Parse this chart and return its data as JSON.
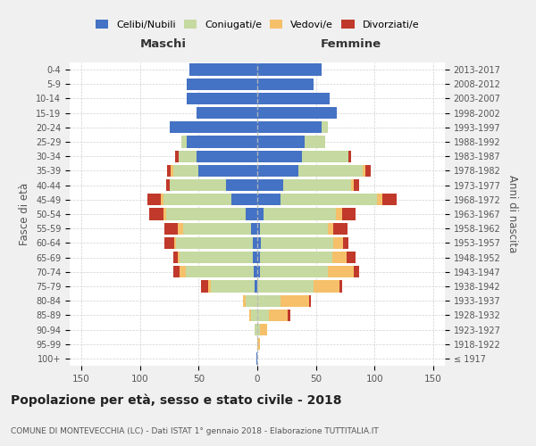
{
  "age_groups": [
    "100+",
    "95-99",
    "90-94",
    "85-89",
    "80-84",
    "75-79",
    "70-74",
    "65-69",
    "60-64",
    "55-59",
    "50-54",
    "45-49",
    "40-44",
    "35-39",
    "30-34",
    "25-29",
    "20-24",
    "15-19",
    "10-14",
    "5-9",
    "0-4"
  ],
  "birth_years": [
    "≤ 1917",
    "1918-1922",
    "1923-1927",
    "1928-1932",
    "1933-1937",
    "1938-1942",
    "1943-1947",
    "1948-1952",
    "1953-1957",
    "1958-1962",
    "1963-1967",
    "1968-1972",
    "1973-1977",
    "1978-1982",
    "1983-1987",
    "1988-1992",
    "1993-1997",
    "1998-2002",
    "2003-2007",
    "2008-2012",
    "2013-2017"
  ],
  "maschi_celibi": [
    1,
    0,
    0,
    0,
    0,
    2,
    3,
    4,
    4,
    5,
    10,
    22,
    27,
    50,
    52,
    60,
    75,
    52,
    60,
    60,
    58
  ],
  "maschi_coniugati": [
    0,
    0,
    2,
    5,
    10,
    38,
    58,
    62,
    65,
    58,
    68,
    58,
    48,
    22,
    15,
    5,
    0,
    0,
    0,
    0,
    0
  ],
  "maschi_vedovi": [
    0,
    0,
    0,
    2,
    2,
    2,
    5,
    2,
    2,
    5,
    2,
    2,
    0,
    2,
    0,
    0,
    0,
    0,
    0,
    0,
    0
  ],
  "maschi_divorziati": [
    0,
    0,
    0,
    0,
    0,
    6,
    6,
    4,
    8,
    11,
    12,
    12,
    3,
    3,
    3,
    0,
    0,
    0,
    0,
    0,
    0
  ],
  "femmine_nubili": [
    0,
    0,
    0,
    0,
    0,
    0,
    2,
    2,
    3,
    2,
    5,
    20,
    22,
    35,
    38,
    40,
    55,
    68,
    62,
    48,
    55
  ],
  "femmine_coniugate": [
    0,
    0,
    2,
    10,
    20,
    48,
    58,
    62,
    62,
    58,
    62,
    82,
    58,
    55,
    40,
    18,
    5,
    0,
    0,
    0,
    0
  ],
  "femmine_vedove": [
    0,
    2,
    6,
    16,
    24,
    22,
    22,
    12,
    8,
    5,
    5,
    5,
    2,
    2,
    0,
    0,
    0,
    0,
    0,
    0,
    0
  ],
  "femmine_divorziate": [
    0,
    0,
    0,
    2,
    2,
    2,
    5,
    8,
    5,
    12,
    12,
    12,
    5,
    5,
    2,
    0,
    0,
    0,
    0,
    0,
    0
  ],
  "color_celibi": "#4472c4",
  "color_coniugati": "#c5d9a0",
  "color_vedovi": "#f5c069",
  "color_divorziati": "#c0392b",
  "xlim": 160,
  "title": "Popolazione per età, sesso e stato civile - 2018",
  "subtitle": "COMUNE DI MONTEVECCHIA (LC) - Dati ISTAT 1° gennaio 2018 - Elaborazione TUTTITALIA.IT",
  "ylabel": "Fasce di età",
  "right_ylabel": "Anni di nascita",
  "maschi_label": "Maschi",
  "femmine_label": "Femmine",
  "bg_color": "#f0f0f0",
  "plot_bg": "#ffffff"
}
